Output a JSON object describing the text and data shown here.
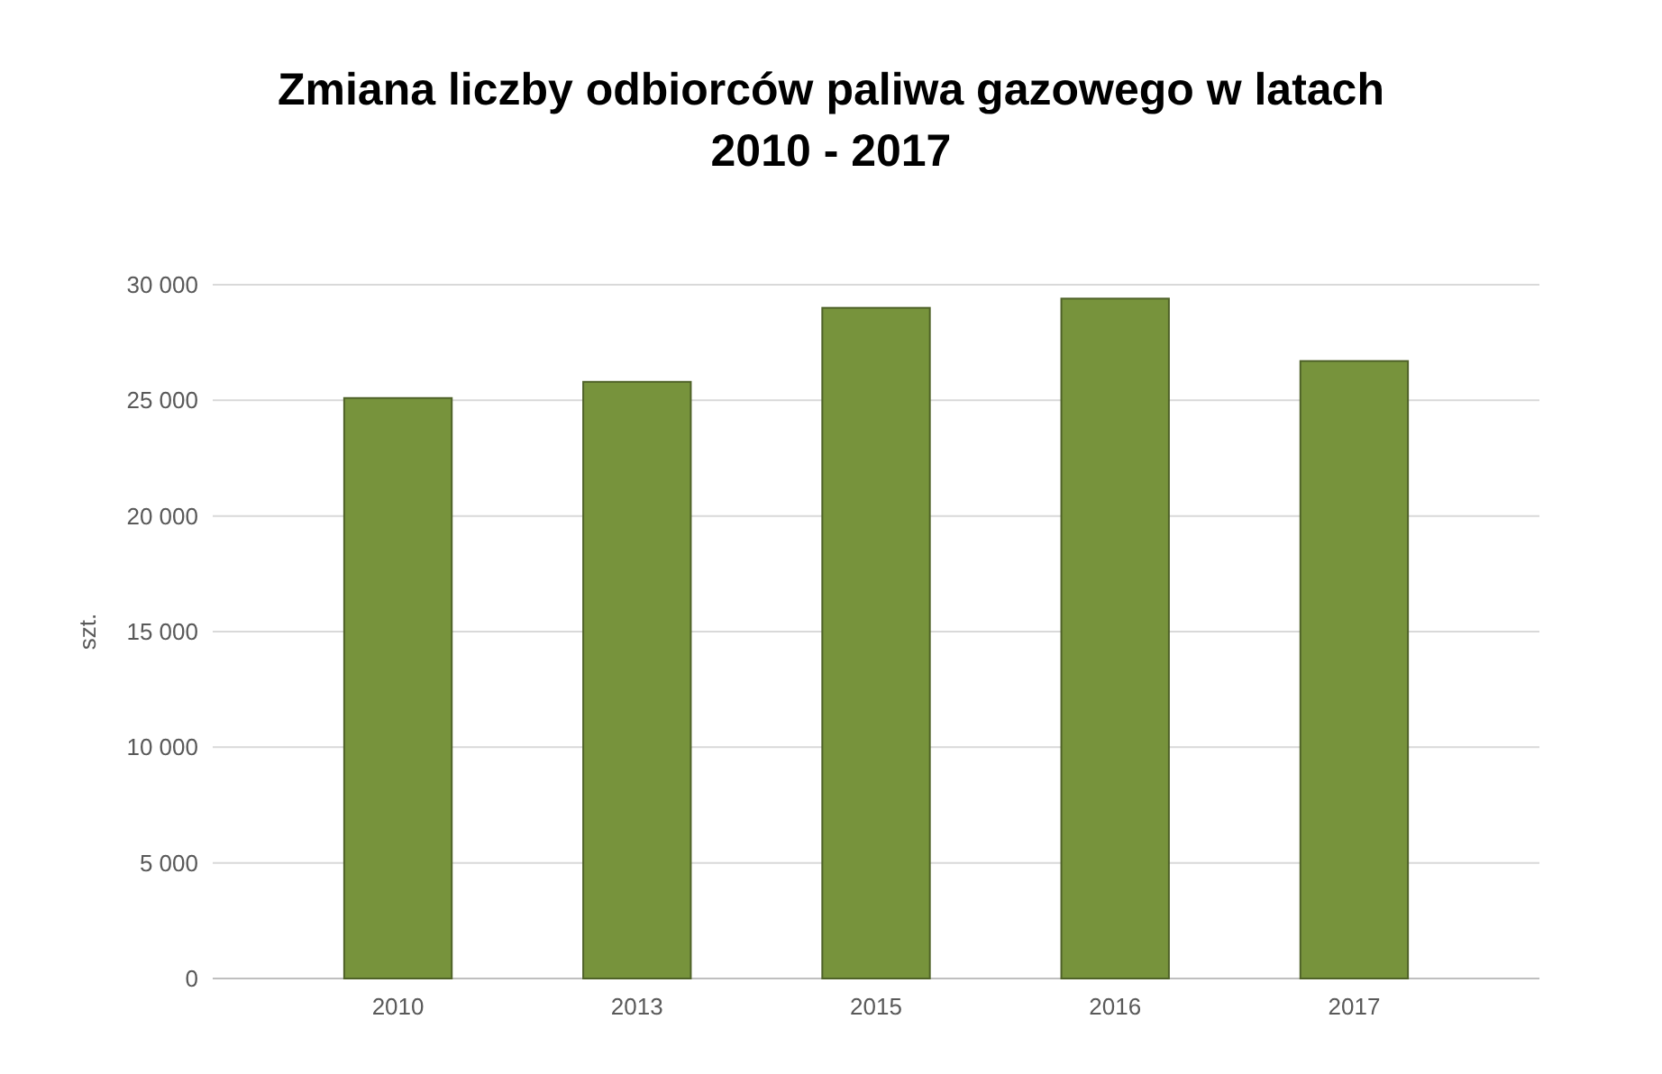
{
  "chart_data": {
    "type": "bar",
    "title": "Zmiana liczby odbiorców paliwa gazowego w latach 2010 - 2017",
    "ylabel": "szt.",
    "categories": [
      "2010",
      "2013",
      "2015",
      "2016",
      "2017"
    ],
    "values": [
      25100,
      25800,
      29000,
      29400,
      26700
    ],
    "color": "#77933c",
    "ylim": [
      0,
      30000
    ],
    "yticks": [
      {
        "value": 0,
        "label": "0"
      },
      {
        "value": 5000,
        "label": "5 000"
      },
      {
        "value": 10000,
        "label": "10 000"
      },
      {
        "value": 15000,
        "label": "15 000"
      },
      {
        "value": 20000,
        "label": "20 000"
      },
      {
        "value": 25000,
        "label": "25 000"
      },
      {
        "value": 30000,
        "label": "30 000"
      }
    ],
    "grid": "y"
  }
}
